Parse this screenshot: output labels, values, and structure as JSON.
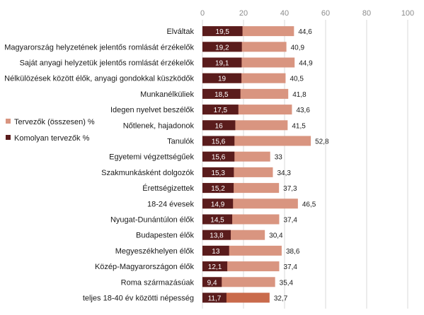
{
  "chart_data": {
    "type": "bar",
    "orientation": "horizontal",
    "xlim": [
      0,
      100
    ],
    "xticks": [
      "0",
      "20",
      "40",
      "60",
      "80",
      "100"
    ],
    "grid": true,
    "legend_position": "left",
    "categories": [
      "Elváltak",
      "Magyarország helyzetének jelentős romlását érzékelők",
      "Saját anyagi helyzetük jelentős romlását érzékelők",
      "Nélkülözések között élők, anyagi gondokkal küszködők",
      "Munkanélküliek",
      "Idegen nyelvet beszélők",
      "Nőtlenek, hajadonok",
      "Tanulók",
      "Egyetemi végzettségűek",
      "Szakmunkásként dolgozók",
      "Érettségizettek",
      "18-24 évesek",
      "Nyugat-Dunántúlon élők",
      "Budapesten élők",
      "Megyeszékhelyen élők",
      "Közép-Magyarországon élők",
      "Roma származásúak",
      "teljes 18-40 év közötti népesség"
    ],
    "series": [
      {
        "name": "Tervezők (összesen) %",
        "color": "#d99580",
        "values": [
          44.6,
          40.9,
          44.9,
          40.5,
          41.8,
          43.6,
          41.5,
          52.8,
          33,
          34.3,
          37.3,
          46.5,
          37.4,
          30.4,
          38.6,
          37.4,
          35.4,
          32.7
        ],
        "labels": [
          "44,6",
          "40,9",
          "44,9",
          "40,5",
          "41,8",
          "43,6",
          "41,5",
          "52,8",
          "33",
          "34,3",
          "37,3",
          "46,5",
          "37,4",
          "30,4",
          "38,6",
          "37,4",
          "35,4",
          "32,7"
        ]
      },
      {
        "name": "Komolyan tervezők %",
        "color": "#5a1c1c",
        "values": [
          19.5,
          19.2,
          19.1,
          19,
          18.5,
          17.5,
          16,
          15.6,
          15.6,
          15.3,
          15.2,
          14.9,
          14.5,
          13.8,
          13,
          12.1,
          9.4,
          11.7
        ],
        "labels": [
          "19,5",
          "19,2",
          "19,1",
          "19",
          "18,5",
          "17,5",
          "16",
          "15,6",
          "15,6",
          "15,3",
          "15,2",
          "14,9",
          "14,5",
          "13,8",
          "13",
          "12,1",
          "9,4",
          "11,7"
        ]
      }
    ],
    "highlight_last_color": "#c96b4c"
  }
}
